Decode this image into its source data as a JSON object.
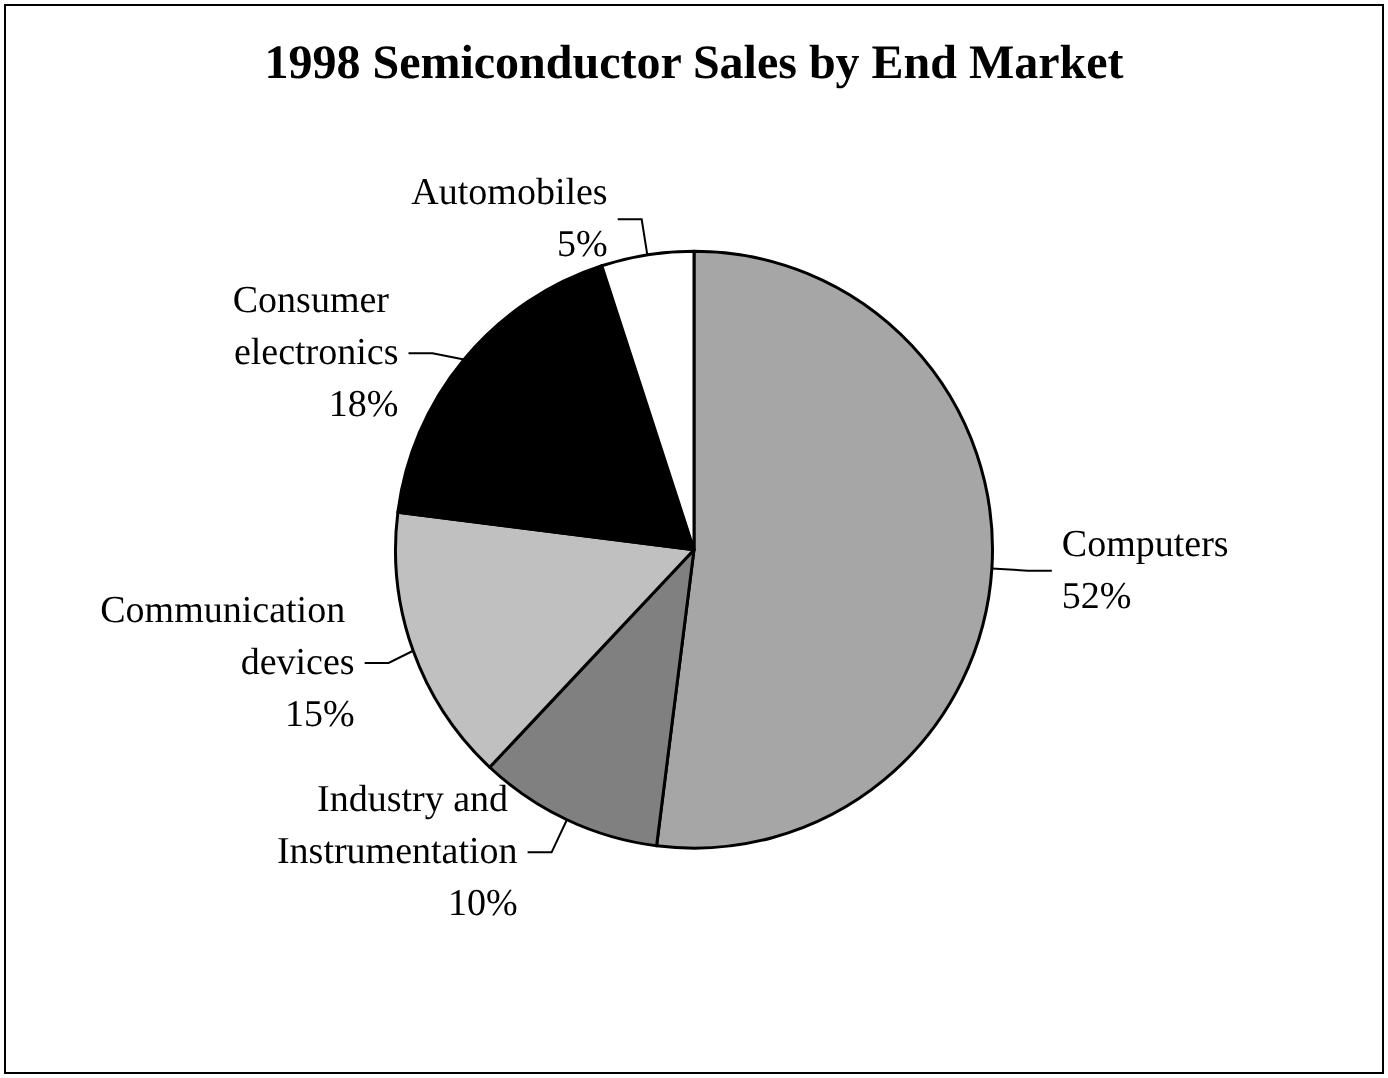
{
  "chart_data": {
    "type": "pie",
    "title": "1998 Semiconductor Sales by End Market",
    "categories": [
      "Computers",
      "Industry and Instrumentation",
      "Communication devices",
      "Consumer electronics",
      "Automobiles"
    ],
    "values": [
      52,
      10,
      15,
      18,
      5
    ],
    "value_labels": [
      "52%",
      "10%",
      "15%",
      "18%",
      "5%"
    ],
    "colors": [
      "#a6a6a6",
      "#808080",
      "#c0c0c0",
      "#000000",
      "#ffffff"
    ]
  }
}
